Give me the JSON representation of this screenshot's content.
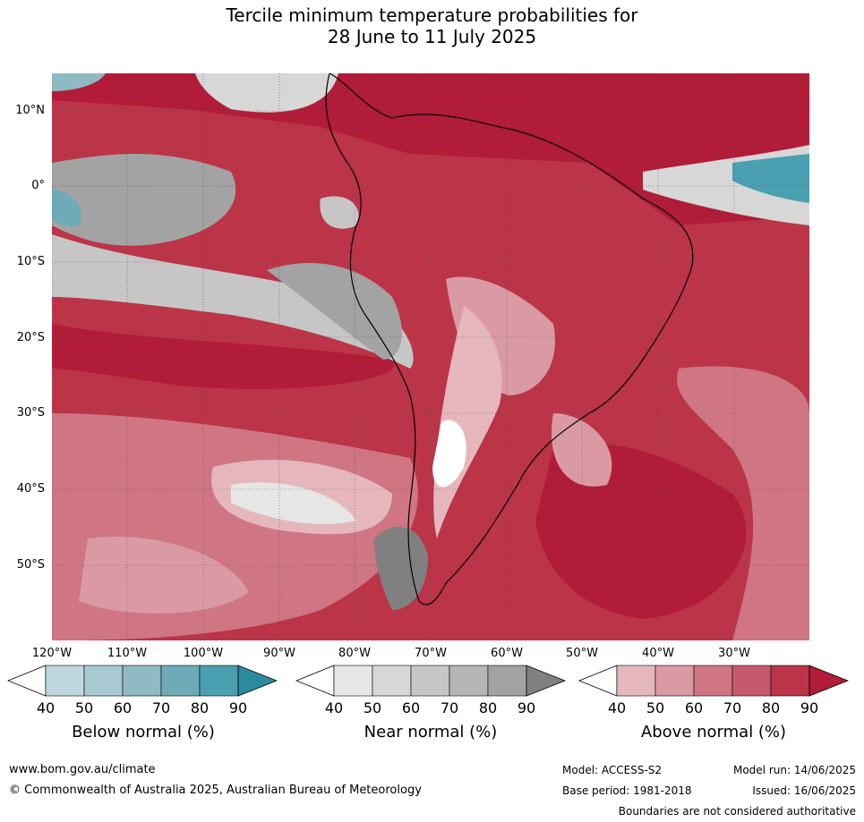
{
  "title_line1": "Tercile minimum temperature probabilities for",
  "title_line2": "28 June to 11 July 2025",
  "lat_labels": [
    "10°N",
    "0°",
    "10°S",
    "20°S",
    "30°S",
    "40°S",
    "50°S"
  ],
  "lon_labels": [
    "120°W",
    "110°W",
    "100°W",
    "90°W",
    "80°W",
    "70°W",
    "60°W",
    "50°W",
    "40°W",
    "30°W"
  ],
  "colorbars": [
    {
      "label": "Below normal (%)",
      "ticks": [
        "40",
        "50",
        "60",
        "70",
        "80",
        "90"
      ],
      "colors": [
        "#ffffff",
        "#bfd8df",
        "#a8c9d1",
        "#8fbac4",
        "#6eaab8",
        "#4a9fb0",
        "#2b8a9e"
      ]
    },
    {
      "label": "Near normal (%)",
      "ticks": [
        "40",
        "50",
        "60",
        "70",
        "80",
        "90"
      ],
      "colors": [
        "#ffffff",
        "#e6e6e6",
        "#d7d7d7",
        "#c6c6c6",
        "#b5b5b5",
        "#a3a3a3",
        "#808080"
      ]
    },
    {
      "label": "Above normal (%)",
      "ticks": [
        "40",
        "50",
        "60",
        "70",
        "80",
        "90"
      ],
      "colors": [
        "#ffffff",
        "#e5b7bd",
        "#d99aa3",
        "#cf7583",
        "#c65a6c",
        "#bb3448",
        "#b11c39"
      ]
    }
  ],
  "footer": {
    "website": "www.bom.gov.au/climate",
    "copyright": "© Commonwealth of Australia 2025, Australian Bureau of Meteorology",
    "model": "Model: ACCESS-S2",
    "model_run": "Model run: 14/06/2025",
    "base_period": "Base period: 1981-2018",
    "issued": "Issued: 16/06/2025",
    "disclaimer": "Boundaries are not considered authoritative"
  }
}
